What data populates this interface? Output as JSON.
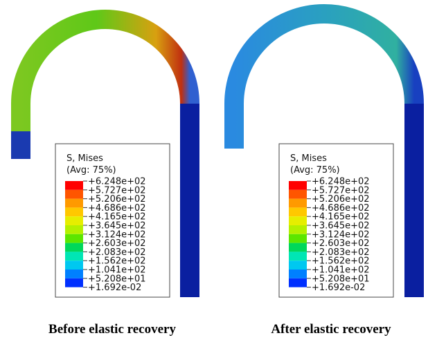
{
  "panels": [
    {
      "legend": {
        "title": "S, Mises",
        "subtitle": "(Avg: 75%)",
        "labels": [
          "+6.248e+02",
          "+5.727e+02",
          "+5.206e+02",
          "+4.686e+02",
          "+4.165e+02",
          "+3.645e+02",
          "+3.124e+02",
          "+2.603e+02",
          "+2.083e+02",
          "+1.562e+02",
          "+1.041e+02",
          "+5.208e+01",
          "+1.692e-02"
        ]
      },
      "caption": "Before elastic recovery"
    },
    {
      "legend": {
        "title": "S, Mises",
        "subtitle": "(Avg: 75%)",
        "labels": [
          "+6.248e+02",
          "+5.727e+02",
          "+5.206e+02",
          "+4.686e+02",
          "+4.165e+02",
          "+3.645e+02",
          "+3.124e+02",
          "+2.603e+02",
          "+2.083e+02",
          "+1.562e+02",
          "+1.041e+02",
          "+5.208e+01",
          "+1.692e-02"
        ]
      },
      "caption": "After elastic recovery"
    }
  ],
  "legend_colors": [
    "#ff0000",
    "#ff5500",
    "#ff9a00",
    "#ffc800",
    "#e6ee00",
    "#b4f000",
    "#5ce600",
    "#00d85a",
    "#00e6b4",
    "#00c8f0",
    "#0080ff",
    "#0030ff"
  ]
}
